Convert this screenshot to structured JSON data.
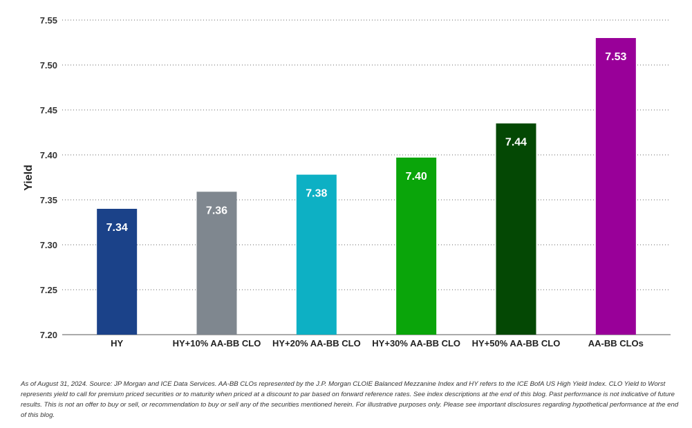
{
  "chart_data": {
    "type": "bar",
    "categories": [
      "HY",
      "HY+10% AA-BB CLO",
      "HY+20% AA-BB CLO",
      "HY+30% AA-BB CLO",
      "HY+50% AA-BB CLO",
      "AA-BB CLOs"
    ],
    "values": [
      7.34,
      7.36,
      7.38,
      7.4,
      7.44,
      7.53
    ],
    "value_labels": [
      "7.34",
      "7.36",
      "7.38",
      "7.40",
      "7.44",
      "7.53"
    ],
    "plot_values": [
      7.34,
      7.359,
      7.378,
      7.397,
      7.435,
      7.53
    ],
    "colors": [
      "#1b4289",
      "#7f878f",
      "#0db0c4",
      "#0aa50a",
      "#044804",
      "#990099"
    ],
    "ylabel": "Yield",
    "ylim": [
      7.2,
      7.55
    ],
    "yticks": [
      "7.20",
      "7.25",
      "7.30",
      "7.35",
      "7.40",
      "7.45",
      "7.50",
      "7.55"
    ],
    "ytick_values": [
      7.2,
      7.25,
      7.3,
      7.35,
      7.4,
      7.45,
      7.5,
      7.55
    ],
    "grid": "dotted horizontal",
    "legend": "none"
  },
  "footnote": "As of August 31, 2024. Source: JP Morgan and ICE Data Services. AA-BB CLOs represented by the J.P. Morgan CLOIE Balanced Mezzanine Index and HY refers to the ICE BofA US High Yield Index. CLO Yield to Worst represents yield to call for premium priced securities or to maturity when priced at a discount to par based on forward reference rates. See index descriptions at the end of this blog. Past performance is not indicative of future results. This is not an offer to buy or sell, or recommendation to buy or sell any of the securities mentioned herein. For illustrative purposes only. Please see important disclosures regarding hypothetical performance at the end of this blog."
}
